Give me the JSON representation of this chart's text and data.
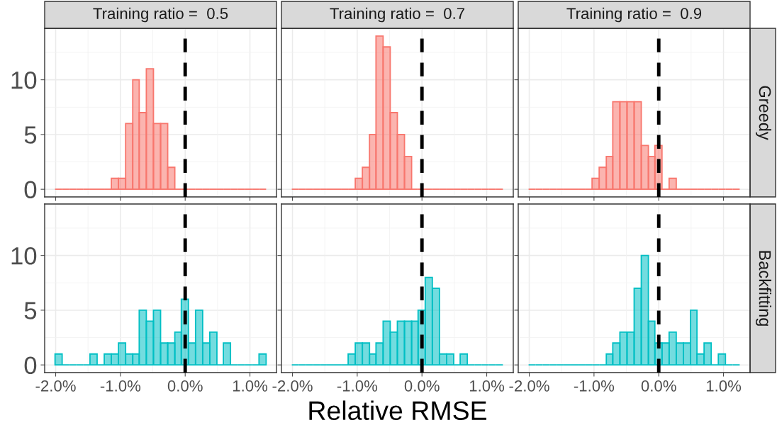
{
  "chart_data": [
    {
      "type": "histogram",
      "title": "Training ratio =  0.5",
      "bins": [
        -2.01,
        -1.9,
        -1.79,
        -1.68,
        -1.57,
        -1.47,
        -1.36,
        -1.25,
        -1.14,
        -1.03,
        -0.92,
        -0.81,
        -0.71,
        -0.6,
        -0.49,
        -0.38,
        -0.27,
        -0.16,
        -0.06,
        0.05,
        0.16,
        0.27,
        0.38,
        0.49,
        0.59,
        0.7,
        0.81,
        0.92,
        1.03,
        1.14,
        1.25
      ],
      "series": [
        {
          "color": "#f8766d",
          "values": [
            0,
            0,
            0,
            0,
            0,
            0,
            0,
            0,
            1,
            1,
            6,
            10,
            7,
            11,
            6,
            6,
            2,
            0,
            0,
            0,
            0,
            0,
            0,
            0,
            0,
            0,
            0,
            0,
            0,
            0
          ]
        }
      ],
      "xlim": [
        -2.17,
        1.41
      ],
      "ylim": [
        -0.7,
        14.7
      ],
      "xticks": [
        {
          "value": -2,
          "label": null
        },
        {
          "value": -1,
          "label": null
        },
        {
          "value": 0,
          "label": null
        },
        {
          "value": 1,
          "label": null
        }
      ],
      "yticks": [
        0,
        5,
        10
      ],
      "grid": true,
      "tick_labels": "y",
      "ref_lines": [
        {
          "axis": "x",
          "value": 0,
          "color": "#000000",
          "line_style": "dashed"
        }
      ]
    },
    {
      "type": "histogram",
      "title": "Training ratio =  0.7",
      "bins": [
        -2.01,
        -1.9,
        -1.79,
        -1.68,
        -1.57,
        -1.47,
        -1.36,
        -1.25,
        -1.14,
        -1.03,
        -0.92,
        -0.81,
        -0.71,
        -0.6,
        -0.49,
        -0.38,
        -0.27,
        -0.16,
        -0.06,
        0.05,
        0.16,
        0.27,
        0.38,
        0.49,
        0.59,
        0.7,
        0.81,
        0.92,
        1.03,
        1.14,
        1.25
      ],
      "series": [
        {
          "color": "#f8766d",
          "values": [
            0,
            0,
            0,
            0,
            0,
            0,
            0,
            0,
            0,
            1,
            2,
            5,
            14,
            13,
            7,
            5,
            3,
            0,
            0,
            0,
            0,
            0,
            0,
            0,
            0,
            0,
            0,
            0,
            0,
            0
          ]
        }
      ],
      "xlim": [
        -2.17,
        1.41
      ],
      "ylim": [
        -0.7,
        14.7
      ],
      "xticks": [
        {
          "value": -2,
          "label": null
        },
        {
          "value": -1,
          "label": null
        },
        {
          "value": 0,
          "label": null
        },
        {
          "value": 1,
          "label": null
        }
      ],
      "yticks": [
        0,
        5,
        10
      ],
      "grid": true,
      "tick_labels": false,
      "ref_lines": [
        {
          "axis": "x",
          "value": 0,
          "color": "#000000",
          "line_style": "dashed"
        }
      ]
    },
    {
      "type": "histogram",
      "title": "Training ratio =  0.9",
      "y2label": "Greedy",
      "bins": [
        -2.01,
        -1.9,
        -1.79,
        -1.68,
        -1.57,
        -1.47,
        -1.36,
        -1.25,
        -1.14,
        -1.03,
        -0.92,
        -0.81,
        -0.71,
        -0.6,
        -0.49,
        -0.38,
        -0.27,
        -0.16,
        -0.06,
        0.05,
        0.16,
        0.27,
        0.38,
        0.49,
        0.59,
        0.7,
        0.81,
        0.92,
        1.03,
        1.14,
        1.25
      ],
      "series": [
        {
          "color": "#f8766d",
          "values": [
            0,
            0,
            0,
            0,
            0,
            0,
            0,
            0,
            0,
            1,
            2,
            3,
            8,
            8,
            8,
            8,
            4,
            3,
            4,
            0,
            1,
            0,
            0,
            0,
            0,
            0,
            0,
            0,
            0,
            0
          ]
        }
      ],
      "xlim": [
        -2.17,
        1.41
      ],
      "ylim": [
        -0.7,
        14.7
      ],
      "xticks": [
        {
          "value": -2,
          "label": null
        },
        {
          "value": -1,
          "label": null
        },
        {
          "value": 0,
          "label": null
        },
        {
          "value": 1,
          "label": null
        }
      ],
      "yticks": [
        0,
        5,
        10
      ],
      "grid": true,
      "tick_labels": false,
      "ref_lines": [
        {
          "axis": "x",
          "value": 0,
          "color": "#000000",
          "line_style": "dashed"
        }
      ]
    },
    {
      "type": "histogram",
      "bins": [
        -2.01,
        -1.9,
        -1.79,
        -1.68,
        -1.57,
        -1.47,
        -1.36,
        -1.25,
        -1.14,
        -1.03,
        -0.92,
        -0.81,
        -0.71,
        -0.6,
        -0.49,
        -0.38,
        -0.27,
        -0.16,
        -0.06,
        0.05,
        0.16,
        0.27,
        0.38,
        0.49,
        0.59,
        0.7,
        0.81,
        0.92,
        1.03,
        1.14,
        1.25
      ],
      "series": [
        {
          "color": "#00bfc4",
          "values": [
            1,
            0,
            0,
            0,
            0,
            1,
            0,
            1,
            1,
            2,
            1,
            1,
            5,
            4,
            5,
            2,
            2,
            3,
            6,
            2,
            5,
            2,
            3,
            0,
            2,
            0,
            0,
            0,
            0,
            1
          ]
        }
      ],
      "xlim": [
        -2.17,
        1.41
      ],
      "ylim": [
        -0.7,
        14.7
      ],
      "xticks": [
        {
          "value": -2,
          "label": "-2.0%"
        },
        {
          "value": -1,
          "label": "-1.0%"
        },
        {
          "value": 0,
          "label": "0.0%"
        },
        {
          "value": 1,
          "label": "1.0%"
        }
      ],
      "yticks": [
        0,
        5,
        10
      ],
      "grid": true,
      "ref_lines": [
        {
          "axis": "x",
          "value": 0,
          "color": "#000000",
          "line_style": "dashed"
        }
      ]
    },
    {
      "type": "histogram",
      "xlabel": "Relative RMSE",
      "bins": [
        -2.01,
        -1.9,
        -1.79,
        -1.68,
        -1.57,
        -1.47,
        -1.36,
        -1.25,
        -1.14,
        -1.03,
        -0.92,
        -0.81,
        -0.71,
        -0.6,
        -0.49,
        -0.38,
        -0.27,
        -0.16,
        -0.06,
        0.05,
        0.16,
        0.27,
        0.38,
        0.49,
        0.59,
        0.7,
        0.81,
        0.92,
        1.03,
        1.14,
        1.25
      ],
      "series": [
        {
          "color": "#00bfc4",
          "values": [
            0,
            0,
            0,
            0,
            0,
            0,
            0,
            0,
            1,
            2,
            2,
            1,
            2,
            4,
            3,
            4,
            4,
            4,
            5,
            8,
            7,
            1,
            1,
            0,
            1,
            0,
            0,
            0,
            0,
            0
          ]
        }
      ],
      "xlim": [
        -2.17,
        1.41
      ],
      "ylim": [
        -0.7,
        14.7
      ],
      "xticks": [
        {
          "value": -2,
          "label": "-2.0%"
        },
        {
          "value": -1,
          "label": "-1.0%"
        },
        {
          "value": 0,
          "label": "0.0%"
        },
        {
          "value": 1,
          "label": "1.0%"
        }
      ],
      "yticks": [
        0,
        5,
        10
      ],
      "grid": true,
      "tick_labels": "x",
      "ref_lines": [
        {
          "axis": "x",
          "value": 0,
          "color": "#000000",
          "line_style": "dashed"
        }
      ]
    },
    {
      "type": "histogram",
      "y2label": "Backfitting",
      "bins": [
        -2.01,
        -1.9,
        -1.79,
        -1.68,
        -1.57,
        -1.47,
        -1.36,
        -1.25,
        -1.14,
        -1.03,
        -0.92,
        -0.81,
        -0.71,
        -0.6,
        -0.49,
        -0.38,
        -0.27,
        -0.16,
        -0.06,
        0.05,
        0.16,
        0.27,
        0.38,
        0.49,
        0.59,
        0.7,
        0.81,
        0.92,
        1.03,
        1.14,
        1.25
      ],
      "series": [
        {
          "color": "#00bfc4",
          "values": [
            0,
            0,
            0,
            0,
            0,
            0,
            0,
            0,
            0,
            0,
            0,
            1,
            2,
            3,
            3,
            7,
            10,
            4,
            2,
            2,
            3,
            2,
            2,
            5,
            1,
            2,
            0,
            1,
            0,
            0
          ]
        }
      ],
      "xlim": [
        -2.17,
        1.41
      ],
      "ylim": [
        -0.7,
        14.7
      ],
      "xticks": [
        {
          "value": -2,
          "label": "-2.0%"
        },
        {
          "value": -1,
          "label": "-1.0%"
        },
        {
          "value": 0,
          "label": "0.0%"
        },
        {
          "value": 1,
          "label": "1.0%"
        }
      ],
      "yticks": [
        0,
        5,
        10
      ],
      "grid": true,
      "tick_labels": "x",
      "ref_lines": [
        {
          "axis": "x",
          "value": 0,
          "color": "#000000",
          "line_style": "dashed"
        }
      ]
    }
  ]
}
